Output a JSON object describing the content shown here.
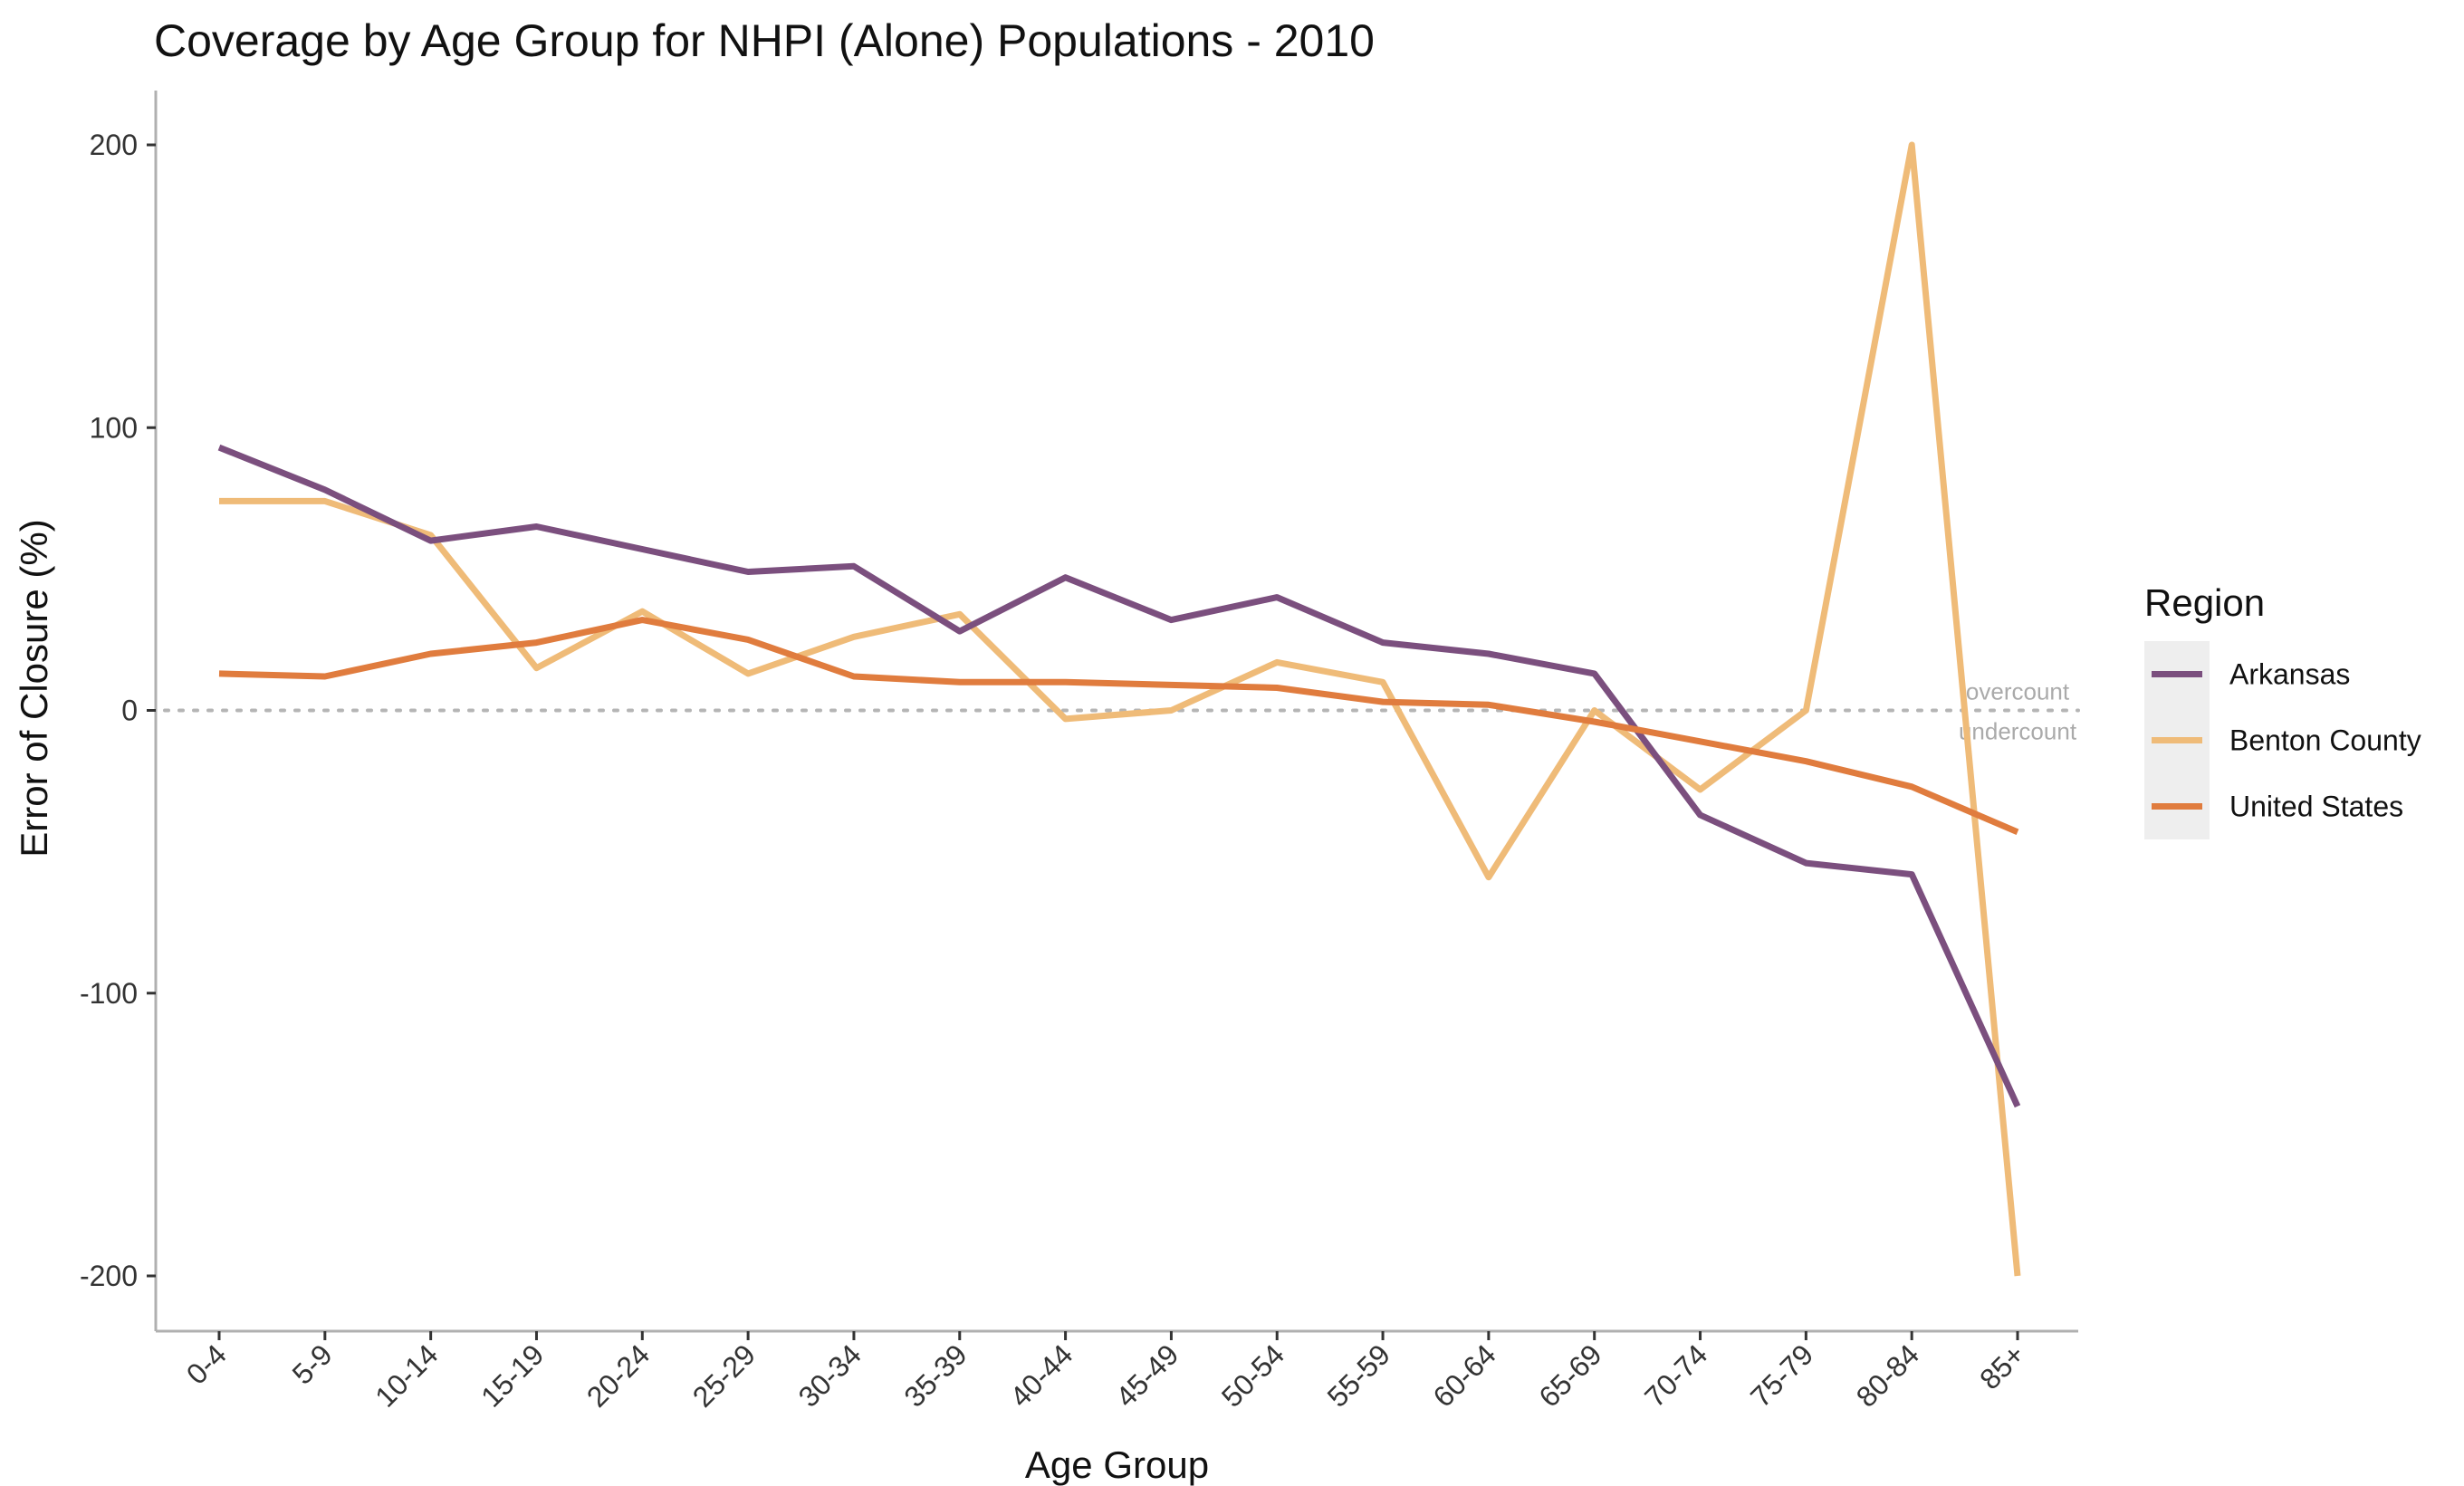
{
  "chart_data": {
    "type": "line",
    "title": "Coverage by Age Group for NHPI (Alone) Populations - 2010",
    "xlabel": "Age Group",
    "ylabel": "Error of Closure (%)",
    "categories": [
      "0-4",
      "5-9",
      "10-14",
      "15-19",
      "20-24",
      "25-29",
      "30-34",
      "35-39",
      "40-44",
      "45-49",
      "50-54",
      "55-59",
      "60-64",
      "65-69",
      "70-74",
      "75-79",
      "80-84",
      "85+"
    ],
    "yticks": [
      -200,
      -100,
      0,
      100,
      200
    ],
    "ylim": [
      -220,
      220
    ],
    "legend": {
      "title": "Region",
      "position": "right"
    },
    "reference_line": {
      "y": 0,
      "style": "dotted",
      "labels": [
        "overcount",
        "undercount"
      ]
    },
    "grid": false,
    "series": [
      {
        "name": "Arkansas",
        "color": "#7b4f7e",
        "values": [
          93,
          78,
          60,
          65,
          57,
          49,
          51,
          28,
          47,
          32,
          40,
          24,
          20,
          13,
          -37,
          -54,
          -58,
          -140
        ]
      },
      {
        "name": "Benton County",
        "color": "#efbb78",
        "values": [
          74,
          74,
          62,
          15,
          35,
          13,
          26,
          34,
          -3,
          0,
          17,
          10,
          -59,
          0,
          -28,
          0,
          200,
          -200
        ]
      },
      {
        "name": "United States",
        "color": "#e07c3e",
        "values": [
          13,
          12,
          20,
          24,
          32,
          25,
          12,
          10,
          10,
          9,
          8,
          3,
          2,
          -4,
          -11,
          -18,
          -27,
          -43
        ]
      }
    ]
  }
}
